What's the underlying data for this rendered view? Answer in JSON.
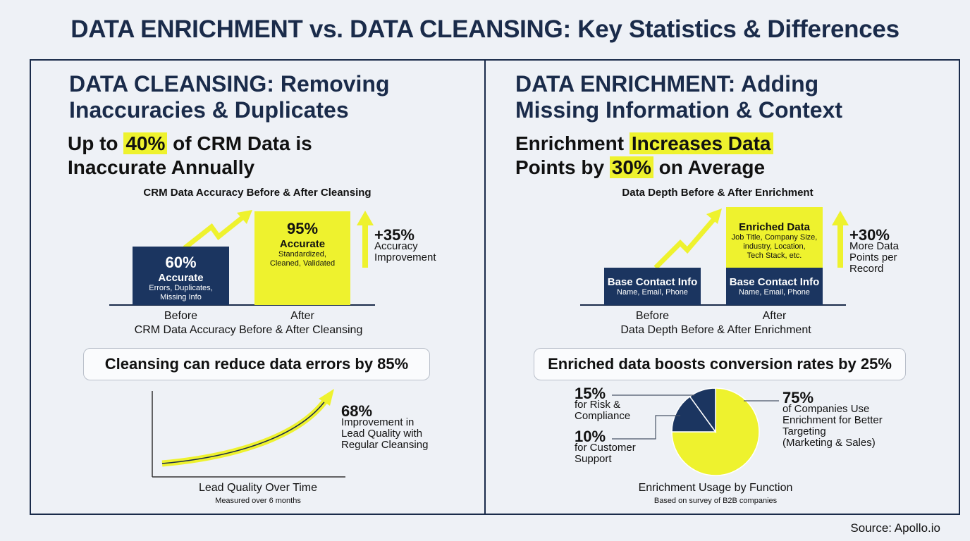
{
  "title": "DATA ENRICHMENT vs. DATA CLEANSING: Key Statistics & Differences",
  "colors": {
    "navy": "#1b3560",
    "yellow": "#eef22e",
    "background": "#eef1f6"
  },
  "left": {
    "heading_line1": "DATA CLEANSING: Removing",
    "heading_line2": "Inaccuracies & Duplicates",
    "sub_pre": "Up to ",
    "sub_hl": "40%",
    "sub_post": " of CRM Data is",
    "sub_line2": "Inaccurate Annually",
    "chart_title": "CRM Data Accuracy Before & After Cleansing",
    "callout": "Cleansing can reduce data errors by 85%"
  },
  "right": {
    "heading_line1": "DATA ENRICHMENT: Adding",
    "heading_line2": "Missing Information & Context",
    "sub_pre": "Enrichment ",
    "sub_hl": "Increases Data",
    "sub_line2_pre": "Points by ",
    "sub_hl2": "30%",
    "sub_line2_post": " on Average",
    "chart_title": "Data Depth Before & After Enrichment",
    "callout": "Enriched data boosts conversion rates by 25%"
  },
  "chart_data": [
    {
      "type": "bar",
      "title": "CRM Data Accuracy Before & After Cleansing",
      "caption": "CRM Data Accuracy Before & After Cleansing",
      "categories": [
        "Before",
        "After"
      ],
      "values": [
        60,
        95
      ],
      "unit": "%",
      "bars": [
        {
          "value": "60%",
          "label": "Accurate",
          "detail_line1": "Errors, Duplicates,",
          "detail_line2": "Missing Info"
        },
        {
          "value": "95%",
          "label": "Accurate",
          "detail_line1": "Standardized,",
          "detail_line2": "Cleaned, Validated"
        }
      ],
      "annotation": {
        "value": "+35%",
        "line1": "Accuracy",
        "line2": "Improvement"
      }
    },
    {
      "type": "bar",
      "stacked": true,
      "title": "Data Depth Before & After Enrichment",
      "caption": "Data Depth Before & After Enrichment",
      "categories": [
        "Before",
        "After"
      ],
      "base": {
        "label": "Base Contact Info",
        "detail": "Name, Email, Phone"
      },
      "enriched": {
        "label": "Enriched Data",
        "detail_line1": "Job Title, Company Size,",
        "detail_line2": "industry, Location,",
        "detail_line3": "Tech Stack, etc."
      },
      "annotation": {
        "value": "+30%",
        "line1": "More Data",
        "line2": "Points per",
        "line3": "Record"
      }
    },
    {
      "type": "line",
      "title": "Lead Quality Over Time",
      "subtitle": "Measured over 6 months",
      "trend": "increasing",
      "annotation": {
        "value": "68%",
        "line1": "Improvement in",
        "line2": "Lead Quality with",
        "line3": "Regular Cleansing"
      }
    },
    {
      "type": "pie",
      "title": "Enrichment Usage by Function",
      "subtitle": "Based on survey of B2B companies",
      "slices": [
        {
          "value": 75,
          "label": "75%",
          "line1": "of Companies Use",
          "line2": "Enrichment for Better",
          "line3": "Targeting",
          "line4": "(Marketing & Sales)",
          "color": "#eef22e"
        },
        {
          "value": 15,
          "label": "15%",
          "line1": "for Risk &",
          "line2": "Compliance",
          "color": "#1b3560"
        },
        {
          "value": 10,
          "label": "10%",
          "line1": "for Customer",
          "line2": "Support",
          "color": "#1b3560"
        }
      ]
    }
  ],
  "source": "Source: Apollo.io"
}
